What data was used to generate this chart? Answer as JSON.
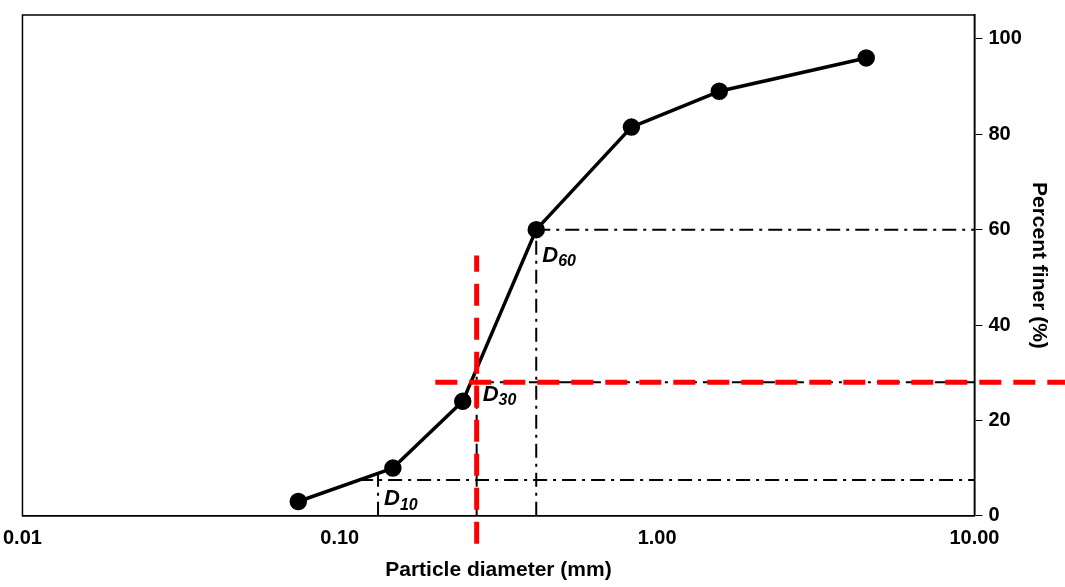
{
  "chart_data": {
    "type": "line",
    "xlabel": "Particle diameter (mm)",
    "ylabel": "Percent finer (%)",
    "x": [
      0.074,
      0.147,
      0.244,
      0.416,
      0.83,
      1.57,
      4.56
    ],
    "series": [
      {
        "color": "#000000",
        "values": [
          3,
          10,
          24,
          60,
          81.5,
          89,
          96
        ]
      }
    ],
    "log": "x",
    "xlim": [
      0.01,
      10
    ],
    "xticks": [
      {
        "value": 0.01,
        "label": "0.01"
      },
      {
        "value": 0.1,
        "label": "0.10"
      },
      {
        "value": 1,
        "label": "1.00"
      },
      {
        "value": 10,
        "label": "10.00"
      }
    ],
    "ylim": [
      0,
      105
    ],
    "yticks": [
      0,
      20,
      40,
      60,
      80,
      100
    ],
    "grid": false,
    "legend": false,
    "marker": "circle",
    "line_style": "solid",
    "ref_lines": [
      {
        "axis": "x",
        "value": 0.132,
        "label": "D$_{10}$",
        "color": "#000000",
        "line_style": "dashed"
      },
      {
        "axis": "y",
        "value": 7.5,
        "color": "#000000",
        "line_style": "dashed"
      },
      {
        "axis": "x",
        "value": 0.27,
        "label": "D$_{30}$",
        "color": "#000000",
        "line_style": "dashed"
      },
      {
        "axis": "y",
        "value": 28,
        "color": "#000000",
        "line_style": "dashed"
      },
      {
        "axis": "x",
        "value": 0.416,
        "label": "D$_{60}$",
        "color": "#000000",
        "line_style": "dashed"
      },
      {
        "axis": "y",
        "value": 60,
        "color": "#000000",
        "line_style": "dashed"
      },
      {
        "axis": "x",
        "value": 0.27,
        "color": "#ff0000",
        "line_style": "dashed"
      },
      {
        "axis": "y",
        "value": 28,
        "color": "#ff0000",
        "line_style": "dashed"
      }
    ]
  }
}
